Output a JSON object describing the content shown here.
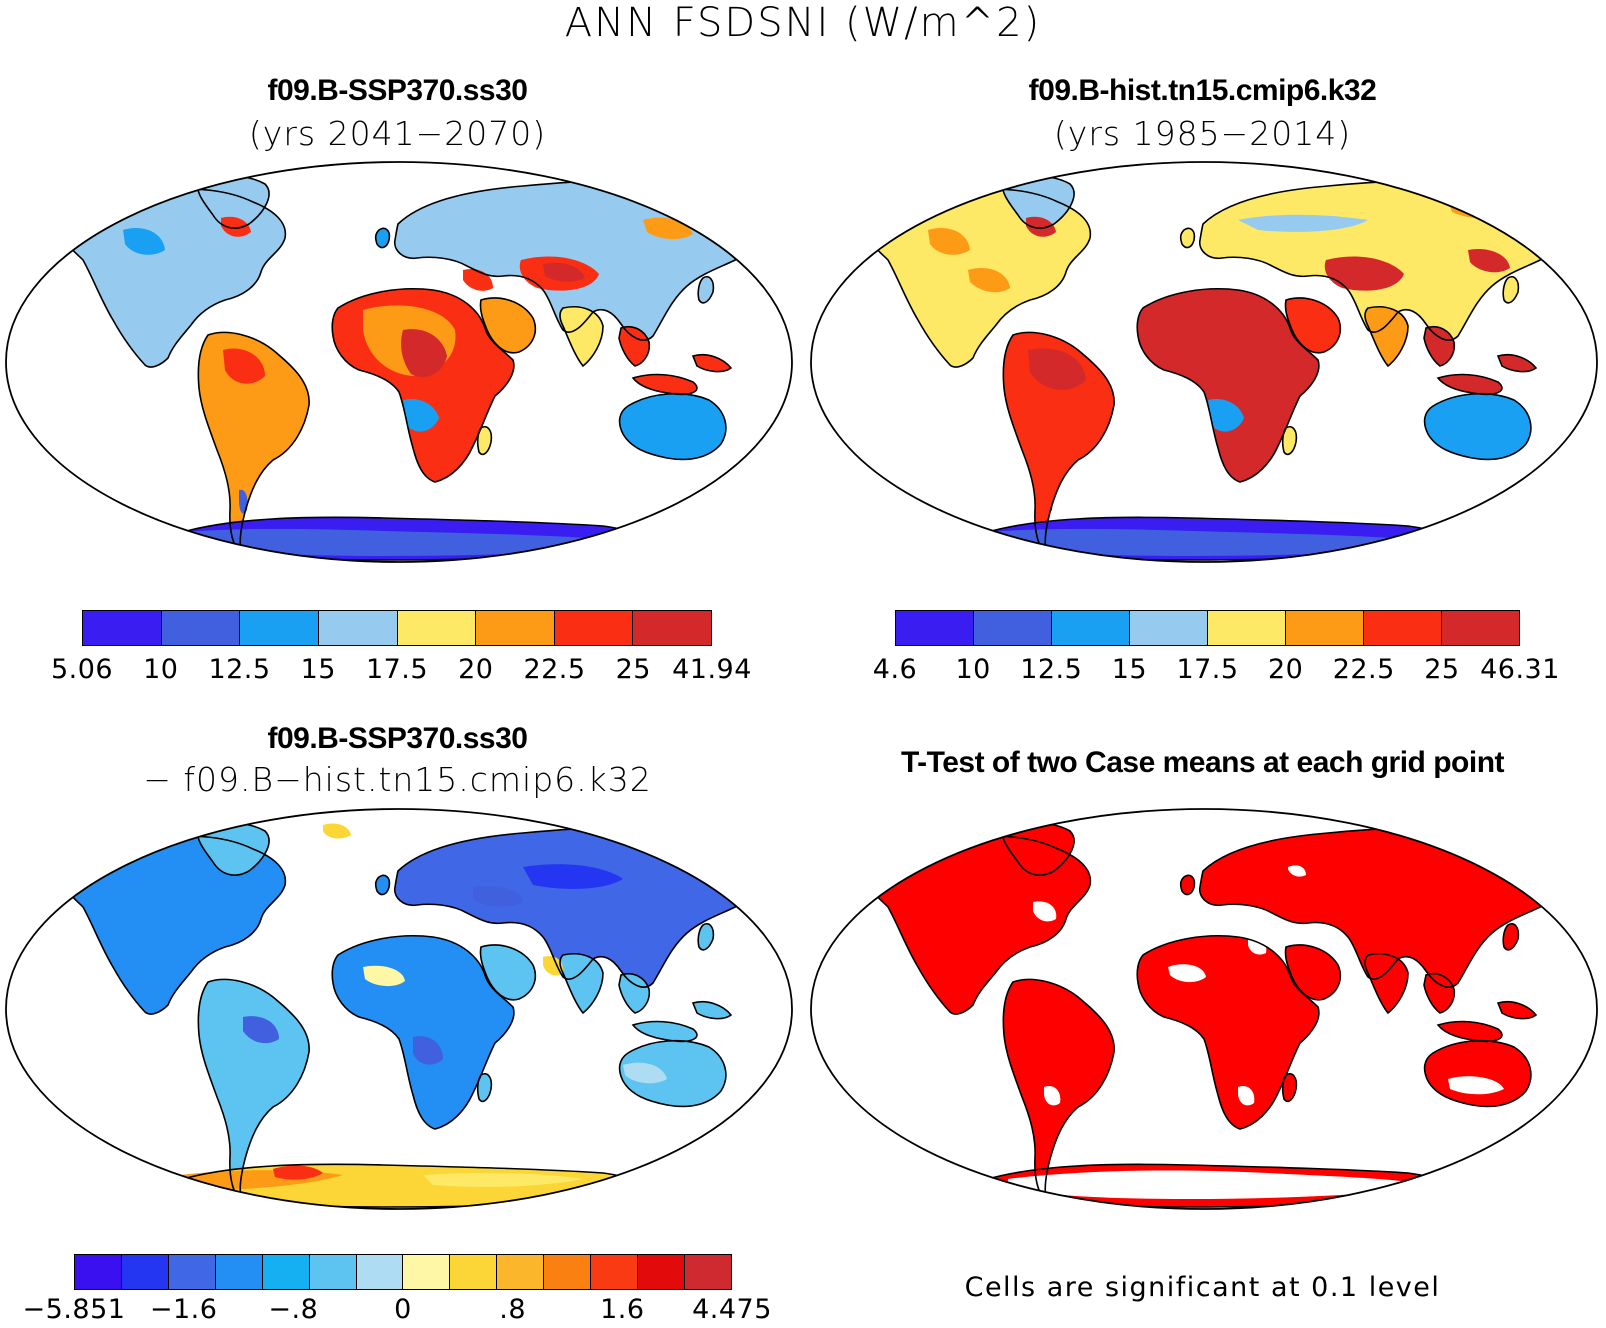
{
  "title": "ANN FSDSNI (W/m^2)",
  "panels": [
    {
      "title": "f09.B-SSP370.ss30",
      "subtitle": "(yrs 2041−2070)",
      "colorbar": {
        "colors": [
          "#3a1df0",
          "#4060e0",
          "#1aa0f2",
          "#96cbef",
          "#fde965",
          "#fd9a16",
          "#f92e13",
          "#d3292b"
        ],
        "labels": [
          "5.06",
          "10",
          "12.5",
          "15",
          "17.5",
          "20",
          "22.5",
          "25",
          "41.94"
        ]
      }
    },
    {
      "title": "f09.B-hist.tn15.cmip6.k32",
      "subtitle": "(yrs 1985−2014)",
      "colorbar": {
        "colors": [
          "#3a1df0",
          "#4060e0",
          "#1aa0f2",
          "#96cbef",
          "#fde965",
          "#fd9a16",
          "#f92e13",
          "#d3292b"
        ],
        "labels": [
          "4.6",
          "10",
          "12.5",
          "15",
          "17.5",
          "20",
          "22.5",
          "25",
          "46.31"
        ]
      }
    },
    {
      "title": "f09.B-SSP370.ss30",
      "subtitle": "− f09.B−hist.tn15.cmip6.k32",
      "colorbar": {
        "colors": [
          "#3a10f0",
          "#2436f2",
          "#3f67e6",
          "#238ff5",
          "#14b0f2",
          "#5dc3f0",
          "#aedcf2",
          "#fef8a6",
          "#fbd636",
          "#fbb62c",
          "#fb8012",
          "#f93a12",
          "#e20a0a",
          "#cf2a2f"
        ],
        "labels": [
          "−5.851",
          "−1.6",
          "−.8",
          "0",
          ".8",
          "1.6",
          "4.475"
        ]
      }
    },
    {
      "title": "T-Test of two Case means at each grid point",
      "note": "Cells are significant at 0.1 level"
    }
  ]
}
